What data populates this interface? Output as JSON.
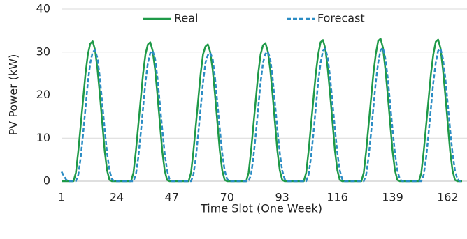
{
  "chart_data": {
    "type": "line",
    "xlabel": "Time Slot (One Week)",
    "ylabel": "PV Power (kW)",
    "x": [
      1,
      2,
      3,
      4,
      5,
      6,
      7,
      8,
      9,
      10,
      11,
      12,
      13,
      14,
      15,
      16,
      17,
      18,
      19,
      20,
      21,
      22,
      23,
      24,
      25,
      26,
      27,
      28,
      29,
      30,
      31,
      32,
      33,
      34,
      35,
      36,
      37,
      38,
      39,
      40,
      41,
      42,
      43,
      44,
      45,
      46,
      47,
      48,
      49,
      50,
      51,
      52,
      53,
      54,
      55,
      56,
      57,
      58,
      59,
      60,
      61,
      62,
      63,
      64,
      65,
      66,
      67,
      68,
      69,
      70,
      71,
      72,
      73,
      74,
      75,
      76,
      77,
      78,
      79,
      80,
      81,
      82,
      83,
      84,
      85,
      86,
      87,
      88,
      89,
      90,
      91,
      92,
      93,
      94,
      95,
      96,
      97,
      98,
      99,
      100,
      101,
      102,
      103,
      104,
      105,
      106,
      107,
      108,
      109,
      110,
      111,
      112,
      113,
      114,
      115,
      116,
      117,
      118,
      119,
      120,
      121,
      122,
      123,
      124,
      125,
      126,
      127,
      128,
      129,
      130,
      131,
      132,
      133,
      134,
      135,
      136,
      137,
      138,
      139,
      140,
      141,
      142,
      143,
      144,
      145,
      146,
      147,
      148,
      149,
      150,
      151,
      152,
      153,
      154,
      155,
      156,
      157,
      158,
      159,
      160,
      161,
      162,
      163,
      164,
      165,
      166,
      167,
      168
    ],
    "series": [
      {
        "name": "Real",
        "color": "#1f9a48",
        "dash": false,
        "values": [
          0,
          0,
          0,
          0,
          0,
          0,
          2,
          7,
          13,
          19,
          25,
          29.5,
          32,
          32.5,
          30.5,
          26,
          20,
          13.5,
          7,
          2.5,
          0.3,
          0,
          0,
          0,
          0,
          0,
          0,
          0,
          0,
          0,
          2,
          7,
          13,
          19,
          25,
          29.5,
          31.8,
          32.3,
          30.3,
          26,
          20,
          13.5,
          7,
          2.5,
          0.3,
          0,
          0,
          0,
          0,
          0,
          0,
          0,
          0,
          0,
          2,
          7,
          13,
          19,
          25,
          29.5,
          31.3,
          31.8,
          30,
          26,
          20,
          13.5,
          7,
          2.5,
          0.3,
          0,
          0,
          0,
          0,
          0,
          0,
          0,
          0,
          0,
          2,
          7,
          13,
          19,
          25,
          29.5,
          31.6,
          32.1,
          30.2,
          26,
          20,
          13.5,
          7,
          2.5,
          0.3,
          0,
          0,
          0,
          0,
          0,
          0,
          0,
          0,
          0,
          2,
          7,
          13,
          19,
          25,
          29.5,
          32.3,
          32.8,
          30.8,
          26,
          20,
          13.5,
          7,
          2.5,
          0.3,
          0,
          0,
          0,
          0,
          0,
          0,
          0,
          0,
          0,
          2,
          7,
          13,
          19,
          25,
          29.5,
          32.6,
          33.1,
          31,
          26,
          20,
          13.5,
          7,
          2.5,
          0.3,
          0,
          0,
          0,
          0,
          0,
          0,
          0,
          0,
          0,
          2,
          7,
          13,
          19,
          25,
          29.5,
          32.4,
          32.9,
          30.9,
          26,
          20,
          13.5,
          7,
          2.5,
          0.3,
          0,
          0,
          0
        ]
      },
      {
        "name": "Forecast",
        "color": "#2b8cc4",
        "dash": true,
        "values": [
          2.2,
          1.2,
          0.3,
          0,
          0,
          0,
          0,
          1.5,
          5.5,
          11,
          17,
          23,
          27.5,
          30,
          30.5,
          28.5,
          24,
          18,
          12,
          6.5,
          2.5,
          0.5,
          0,
          0,
          0,
          0,
          0,
          0,
          0,
          0,
          0,
          1.5,
          5.5,
          11,
          17,
          23,
          27.5,
          29.8,
          30.3,
          28.5,
          24,
          18,
          12,
          6.5,
          2.5,
          0.5,
          0,
          0,
          0,
          0,
          0,
          0,
          0,
          0,
          0,
          1.5,
          5.5,
          11,
          17,
          23,
          27.5,
          29.3,
          29.8,
          28.5,
          24,
          18,
          12,
          6.5,
          2.5,
          0.5,
          0,
          0,
          0,
          0,
          0,
          0,
          0,
          0,
          0,
          1.5,
          5.5,
          11,
          17,
          23,
          27.5,
          29.6,
          30.1,
          28.5,
          24,
          18,
          12,
          6.5,
          2.5,
          0.5,
          0,
          0,
          0,
          0,
          0,
          0,
          0,
          0,
          0,
          1.5,
          5.5,
          11,
          17,
          23,
          27.5,
          30.3,
          30.8,
          28.5,
          24,
          18,
          12,
          6.5,
          2.5,
          0.5,
          0,
          0,
          0,
          0,
          0,
          0,
          0,
          0,
          0,
          1.5,
          5.5,
          11,
          17,
          23,
          27.5,
          30.5,
          31,
          28.5,
          24,
          18,
          12,
          6.5,
          2.5,
          0.5,
          0,
          0,
          0,
          0,
          0,
          0,
          0,
          0,
          0,
          1.5,
          5.5,
          11,
          17,
          23,
          27.5,
          30.3,
          30.8,
          28.5,
          24,
          18,
          12,
          6.5,
          2.5,
          0.5,
          0,
          0
        ]
      }
    ],
    "xlim": [
      1,
      168
    ],
    "xticks": [
      1,
      24,
      47,
      70,
      93,
      116,
      139,
      162
    ],
    "ylim": [
      0,
      40
    ],
    "yticks": [
      0,
      10,
      20,
      30,
      40
    ],
    "grid": true,
    "legend": "top"
  }
}
